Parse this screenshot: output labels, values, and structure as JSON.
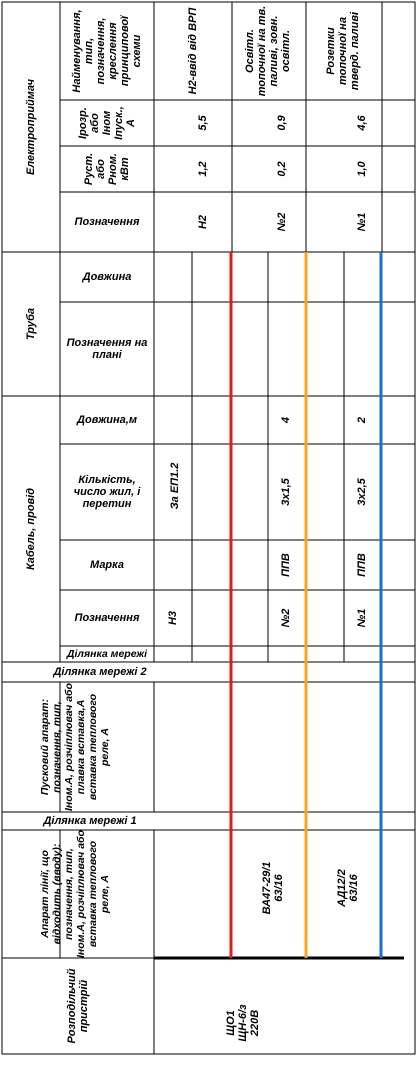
{
  "sections": {
    "consumer": "Електроприймач",
    "pipe": "Труба",
    "cable": "Кабель, провід",
    "starter": "Пусковий апарат: позначення, тип, Іном.А, розчіплювач або плавка вставка,А вставка теплового реле, А",
    "breaker": "Апарат лінії, що відходить (вводу): позначення, тип, Іном.А, розчіплювач або вставка теплового реле, А",
    "distributor": "Розподільчий пристрій"
  },
  "consumer_headers": {
    "name": "Найменування, тип, позначення, креслення принципової схеми",
    "current": "Ірозр. або Іном Іпуск., А",
    "power": "Руст. або Рном. кВт",
    "designation": "Позначення"
  },
  "pipe_headers": {
    "length": "Довжина",
    "plan": "Позначення на плані"
  },
  "cable_headers": {
    "length": "Довжина,м",
    "cores": "Кількість, число жил, і перетин",
    "brand": "Марка",
    "designation": "Позначення",
    "section": "Ділянка мережі"
  },
  "row_labels": {
    "section2": "Ділянка мережі 2",
    "section1": "Ділянка мережі 1"
  },
  "lines": [
    {
      "color": "#e01b1b",
      "name": "Н2-ввід від ВРП",
      "current": "5,5",
      "power": "1,2",
      "designation": "Н2",
      "cable_length": "",
      "cable_cores": "За ЕП1.2",
      "cable_brand": "",
      "cable_designation": "Н3",
      "breaker": ""
    },
    {
      "color": "#f4a81c",
      "name": "Освітл. топочної на тв. паливі, зовн. освітл.",
      "current": "0,9",
      "power": "0,2",
      "designation": "№2",
      "cable_length": "4",
      "cable_cores": "3х1,5",
      "cable_brand": "ППВ",
      "cable_designation": "№2",
      "breaker": "ВА47-29/1\n63/16"
    },
    {
      "color": "#1a73c8",
      "name": "Розетки топочної на тверд. паливі",
      "current": "4,6",
      "power": "1,0",
      "designation": "№1",
      "cable_length": "2",
      "cable_cores": "3х2,5",
      "cable_brand": "ППВ",
      "cable_designation": "№1",
      "breaker": "АД12/2\n63/16"
    }
  ],
  "distributor_value": "ЩО1\nЩН-6/з\n220В"
}
